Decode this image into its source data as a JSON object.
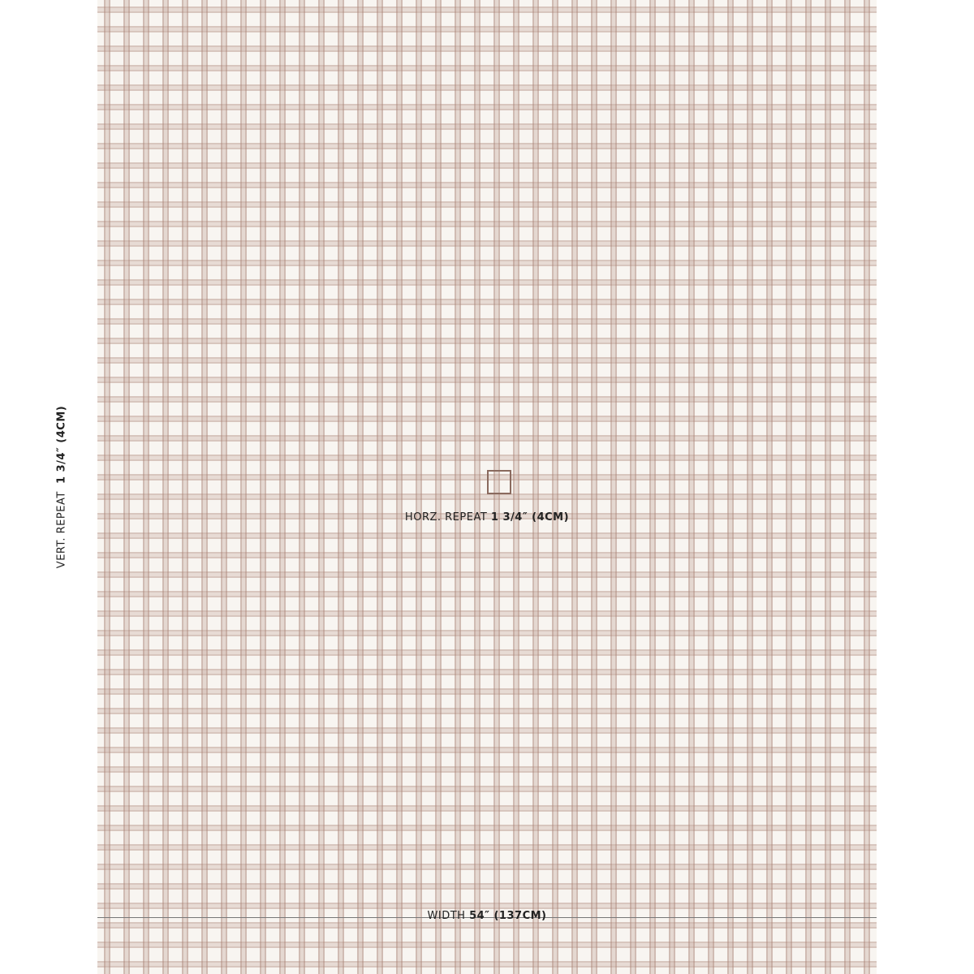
{
  "vertical_repeat": {
    "label": "VERT. REPEAT",
    "value": "1 3/4″ (4CM)"
  },
  "horizontal_repeat": {
    "label": "HORZ. REPEAT",
    "value": "1 3/4″ (4CM)"
  },
  "width": {
    "label": "WIDTH",
    "value": "54″ (137CM)"
  }
}
